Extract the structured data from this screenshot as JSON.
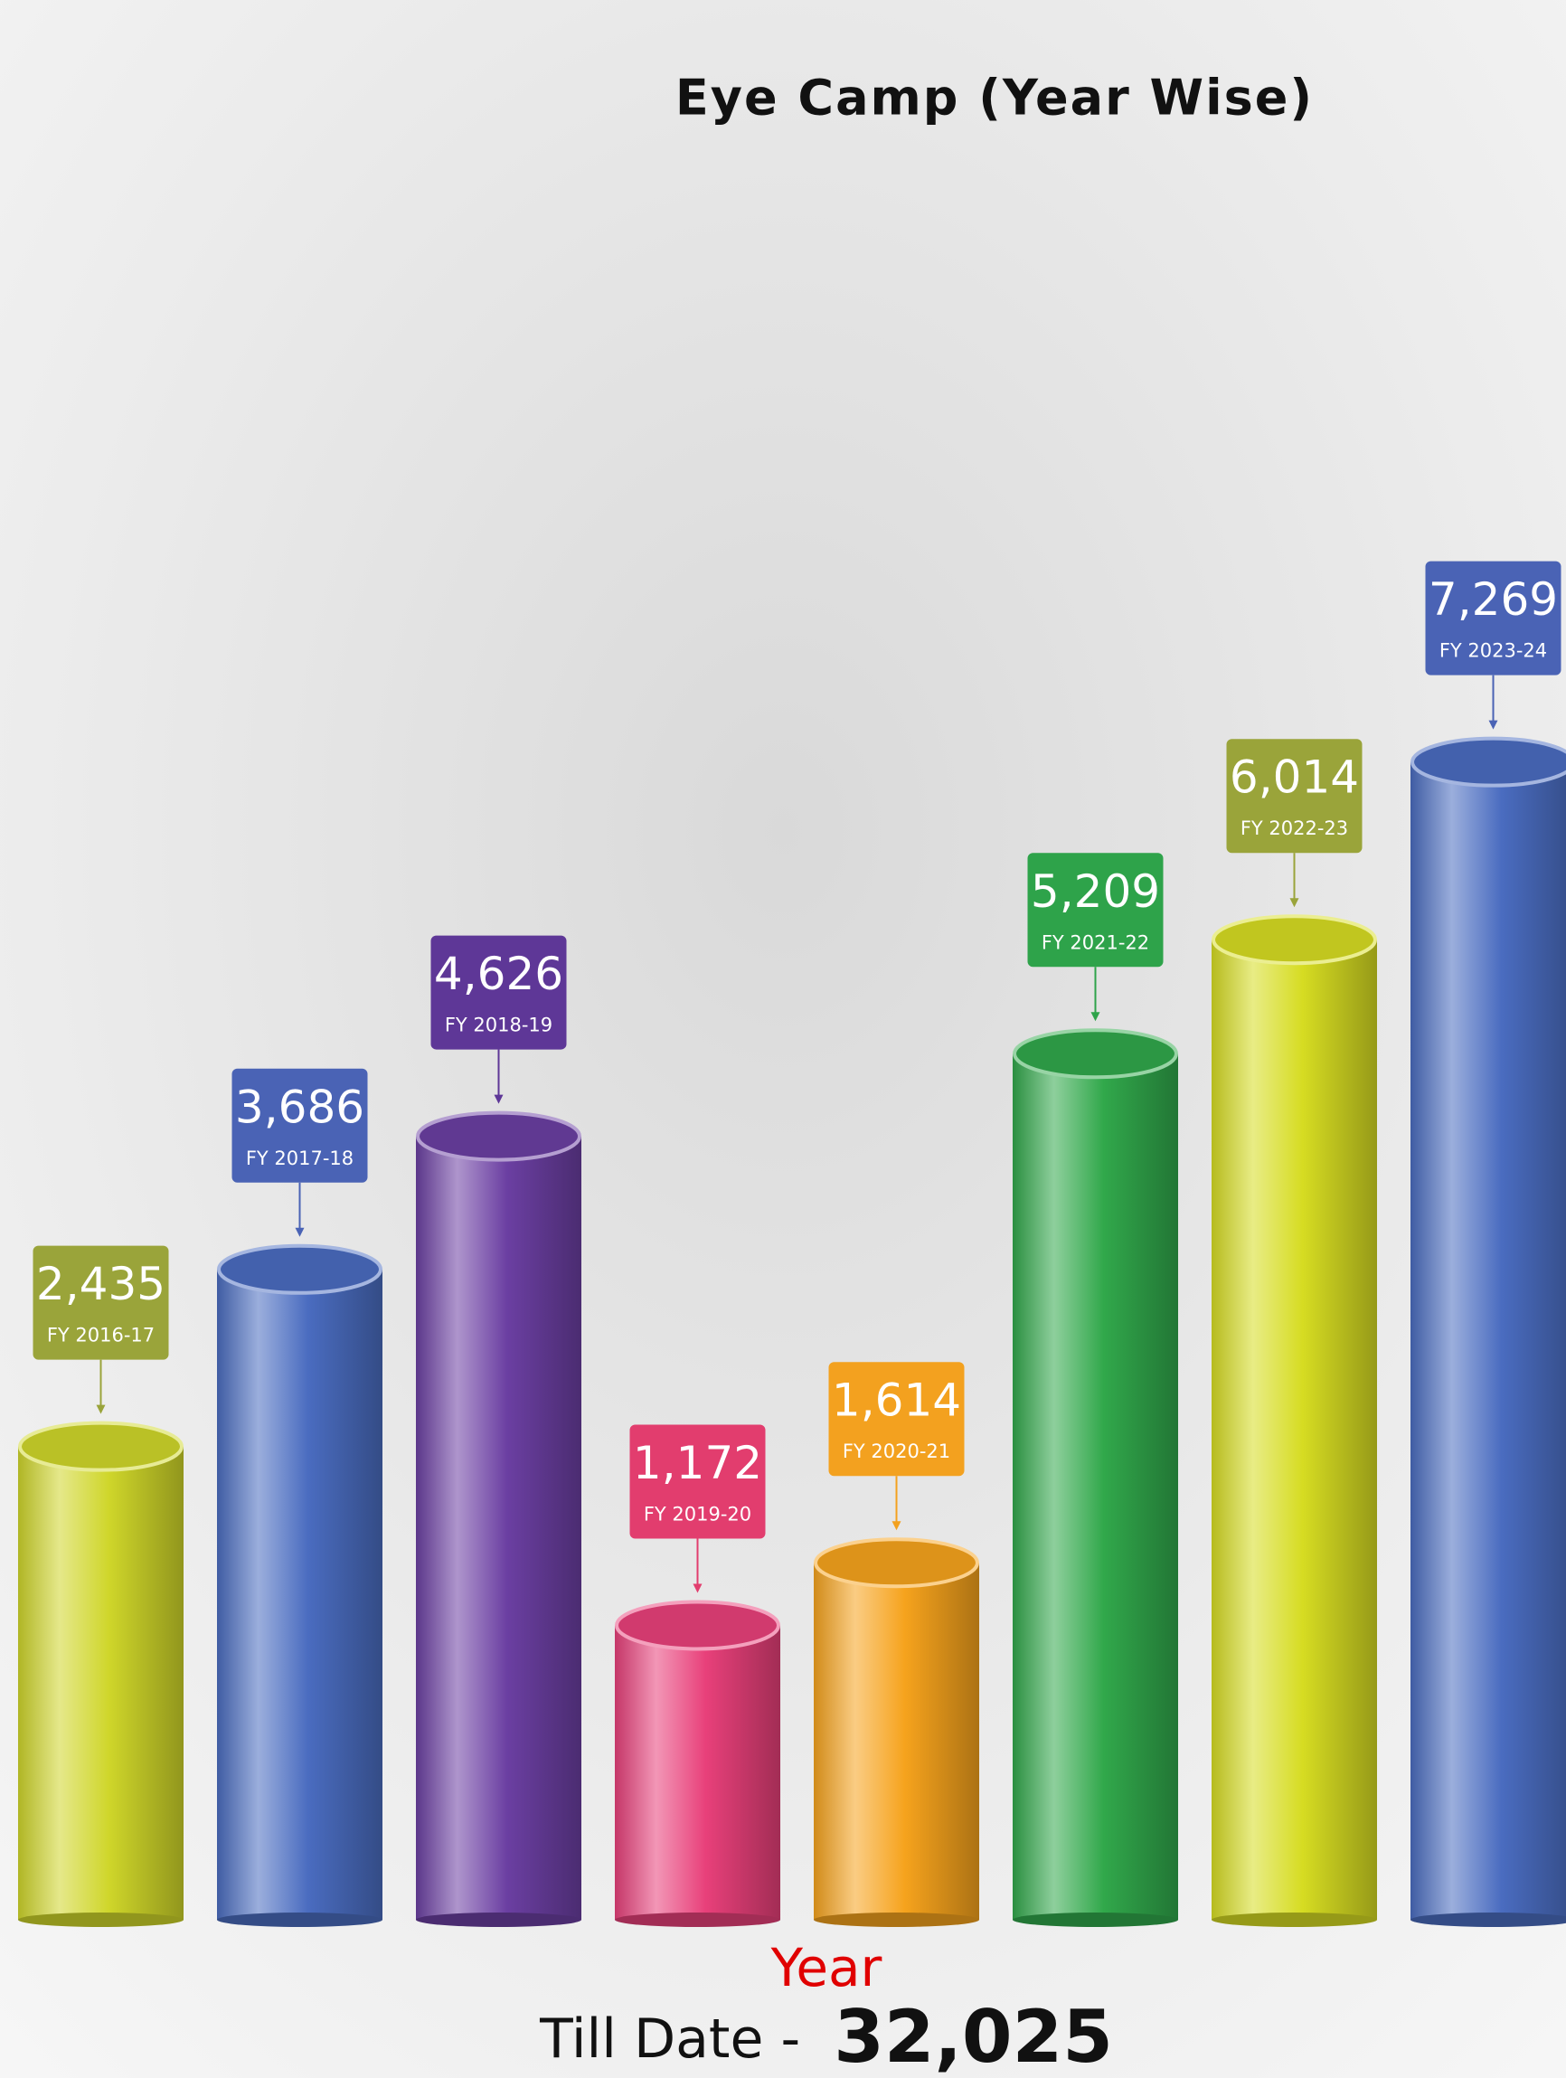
{
  "chart_data": {
    "type": "cylinder",
    "title": "Eye Camp (Year Wise)",
    "x_label": "Year",
    "categories": [
      "FY 2016-17",
      "FY 2017-18",
      "FY 2018-19",
      "FY 2019-20",
      "FY 2020-21",
      "FY 2021-22",
      "FY 2022-23",
      "FY 2023-24"
    ],
    "values": [
      2435,
      3686,
      4626,
      1172,
      1614,
      5209,
      6014,
      7269
    ],
    "value_labels": [
      "2,435",
      "3,686",
      "4,626",
      "1,172",
      "1,614",
      "5,209",
      "6,014",
      "7,269"
    ],
    "colors": [
      "#cfd62a",
      "#4a6cc0",
      "#6b3fa2",
      "#e8407a",
      "#f6a31d",
      "#31a84b",
      "#d6dc22",
      "#4a6cc0"
    ],
    "label_colors": [
      "#9aa43a",
      "#4a63b5",
      "#5e3797",
      "#e23d6e",
      "#f3a11f",
      "#2ea34a",
      "#9aa43a",
      "#4a63b5"
    ]
  },
  "footer": {
    "text": "Till Date -",
    "total": "32,025"
  }
}
